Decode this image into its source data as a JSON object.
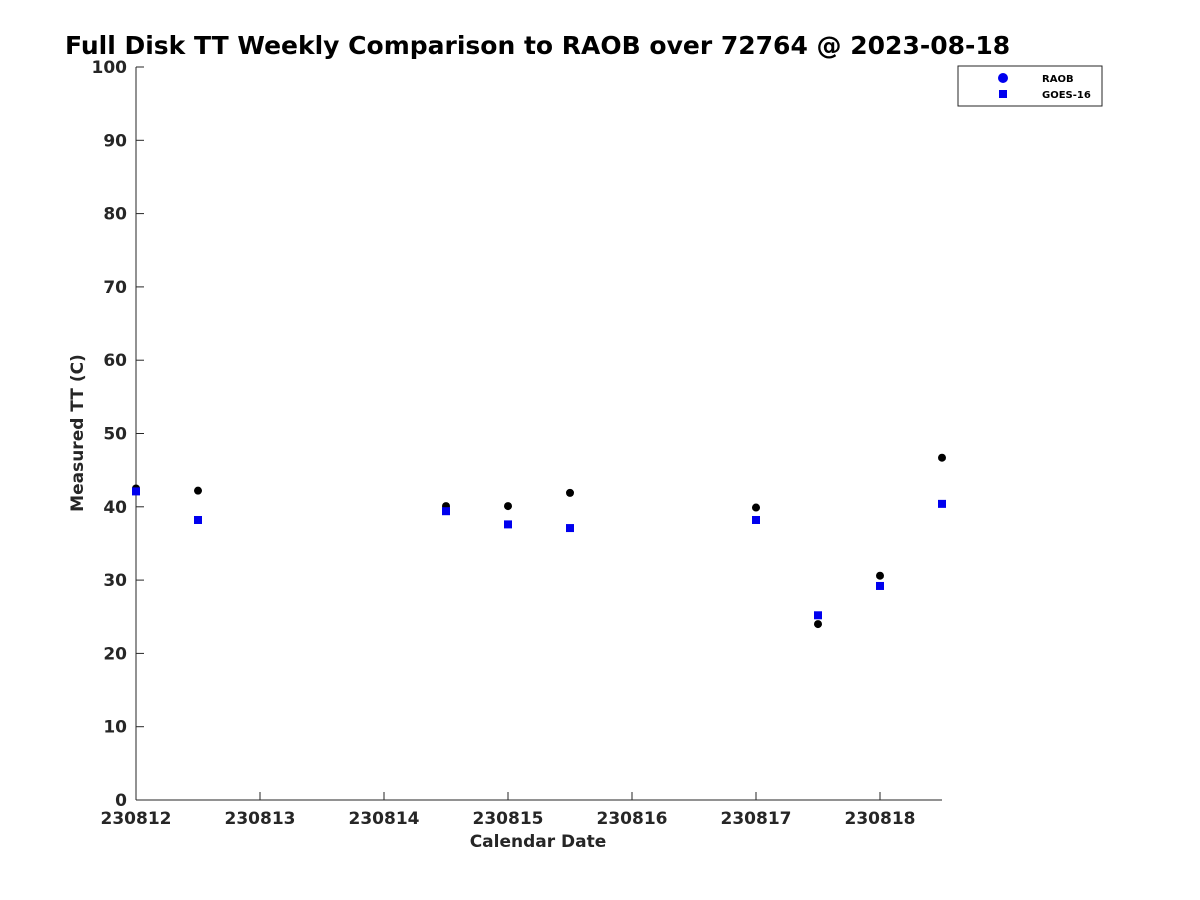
{
  "chart_data": {
    "type": "scatter",
    "title": "Full Disk TT Weekly Comparison to RAOB over 72764 @ 2023-08-18",
    "xlabel": "Calendar Date",
    "ylabel": "Measured TT (C)",
    "xlim": [
      230812,
      230818.5
    ],
    "ylim": [
      0,
      100
    ],
    "x_ticks": [
      230812,
      230813,
      230814,
      230815,
      230816,
      230817,
      230818
    ],
    "x_tick_labels": [
      "230812",
      "230813",
      "230814",
      "230815",
      "230816",
      "230817",
      "230818"
    ],
    "y_ticks": [
      0,
      10,
      20,
      30,
      40,
      50,
      60,
      70,
      80,
      90,
      100
    ],
    "y_tick_labels": [
      "0",
      "10",
      "20",
      "30",
      "40",
      "50",
      "60",
      "70",
      "80",
      "90",
      "100"
    ],
    "grid": false,
    "legend_position": "top-right",
    "series": [
      {
        "name": "RAOB",
        "marker": "circle",
        "color": "#000000",
        "legend_color": "#0000ee",
        "x": [
          230812,
          230812.5,
          230814.5,
          230815,
          230815.5,
          230817,
          230817.5,
          230818,
          230818.5
        ],
        "y": [
          42.5,
          42.2,
          40.1,
          40.1,
          41.9,
          39.9,
          24.0,
          30.6,
          46.7
        ]
      },
      {
        "name": "GOES-16",
        "marker": "square",
        "color": "#0000ee",
        "legend_color": "#0000ee",
        "x": [
          230812,
          230812.5,
          230814.5,
          230815,
          230815.5,
          230817,
          230817.5,
          230818,
          230818.5
        ],
        "y": [
          42.1,
          38.2,
          39.4,
          37.6,
          37.1,
          38.2,
          25.2,
          29.2,
          40.4
        ]
      }
    ]
  }
}
